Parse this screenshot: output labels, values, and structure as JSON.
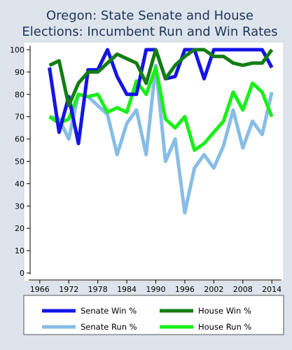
{
  "chart_data": {
    "type": "line",
    "title_lines": [
      "Oregon: State Senate and House",
      "Elections: Incumbent Run and Win Rates"
    ],
    "xlabel": "",
    "ylabel": "",
    "xlim": [
      1964,
      2016
    ],
    "ylim": [
      0,
      100
    ],
    "x_ticks": [
      1966,
      1972,
      1978,
      1984,
      1990,
      1996,
      2002,
      2008,
      2014
    ],
    "y_ticks": [
      0,
      10,
      20,
      30,
      40,
      50,
      60,
      70,
      80,
      90,
      100
    ],
    "grid": false,
    "legend_position": "bottom",
    "x": [
      1968,
      1970,
      1972,
      1974,
      1976,
      1978,
      1980,
      1982,
      1984,
      1986,
      1988,
      1990,
      1992,
      1994,
      1996,
      1998,
      2000,
      2002,
      2004,
      2006,
      2008,
      2010,
      2012,
      2014
    ],
    "series": [
      {
        "name": "Senate Win %",
        "color": "#1414e6",
        "values": [
          92,
          63,
          79,
          58,
          91,
          91,
          100,
          88,
          80,
          80,
          100,
          100,
          87,
          88,
          100,
          100,
          87,
          100,
          100,
          100,
          100,
          100,
          100,
          92
        ]
      },
      {
        "name": "House Win %",
        "color": "#127d12",
        "values": [
          93,
          95,
          75,
          85,
          90,
          90,
          94,
          98,
          96,
          94,
          85,
          100,
          87,
          93,
          97,
          100,
          100,
          97,
          97,
          94,
          93,
          94,
          94,
          100
        ]
      },
      {
        "name": "Senate Run %",
        "color": "#87bde7",
        "values": [
          70,
          69,
          60,
          80,
          79,
          75,
          71,
          53,
          67,
          73,
          53,
          93,
          50,
          60,
          27,
          47,
          53,
          47,
          57,
          73,
          56,
          68,
          62,
          81
        ]
      },
      {
        "name": "House Run %",
        "color": "#19ef19",
        "values": [
          70,
          67,
          69,
          80,
          79,
          80,
          72,
          74,
          72,
          86,
          80,
          92,
          69,
          65,
          70,
          55,
          58,
          63,
          68,
          81,
          73,
          85,
          81,
          70
        ]
      }
    ]
  }
}
